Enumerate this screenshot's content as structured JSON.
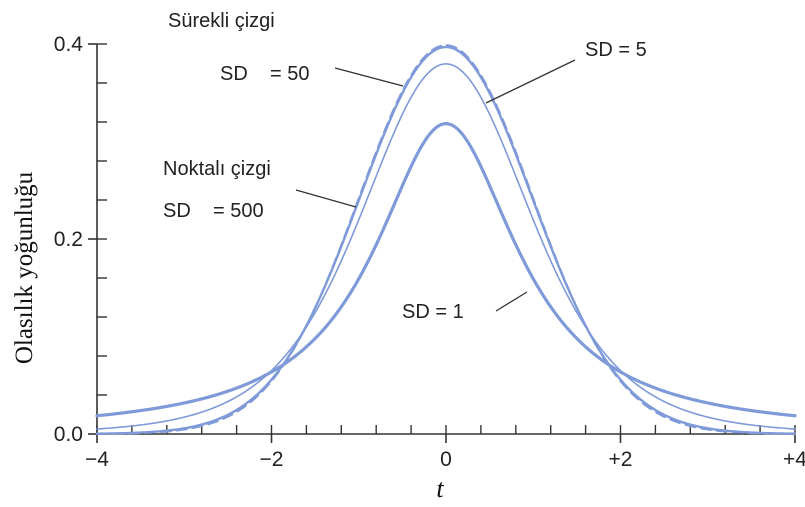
{
  "chart_data": {
    "type": "line",
    "xlabel": "t",
    "ylabel": "Olasılık yoğunluğu",
    "xlim": [
      -4,
      4
    ],
    "ylim": [
      0,
      0.4
    ],
    "x_ticks": [
      {
        "value": -4,
        "label": "−4"
      },
      {
        "value": -2,
        "label": "−2"
      },
      {
        "value": 0,
        "label": "0"
      },
      {
        "value": 2,
        "label": "+2"
      },
      {
        "value": 4,
        "label": "+4"
      }
    ],
    "y_ticks": [
      {
        "value": 0.0,
        "label": "0.0"
      },
      {
        "value": 0.2,
        "label": "0.2"
      },
      {
        "value": 0.4,
        "label": "0.4"
      }
    ],
    "y_minor_step": 0.04,
    "x_minor_step": 0.4,
    "line_color": "#7f9ad8",
    "series": [
      {
        "name": "SD = 1",
        "df": 1,
        "style": "solid",
        "width": 3.2
      },
      {
        "name": "SD = 5",
        "df": 5,
        "style": "solid",
        "width": 1.6
      },
      {
        "name": "SD = 50",
        "df": 50,
        "style": "solid",
        "width": 2.4
      },
      {
        "name": "SD = 500",
        "df": 500,
        "style": "dashed",
        "width": 2.0
      }
    ],
    "annotations": {
      "solid_heading": "Sürekli çizgi",
      "sd50": "SD    = 50",
      "sd5": "SD = 5",
      "dotted_heading": "Noktalı çizgi",
      "sd500": "SD    = 500",
      "sd1": "SD = 1"
    }
  }
}
